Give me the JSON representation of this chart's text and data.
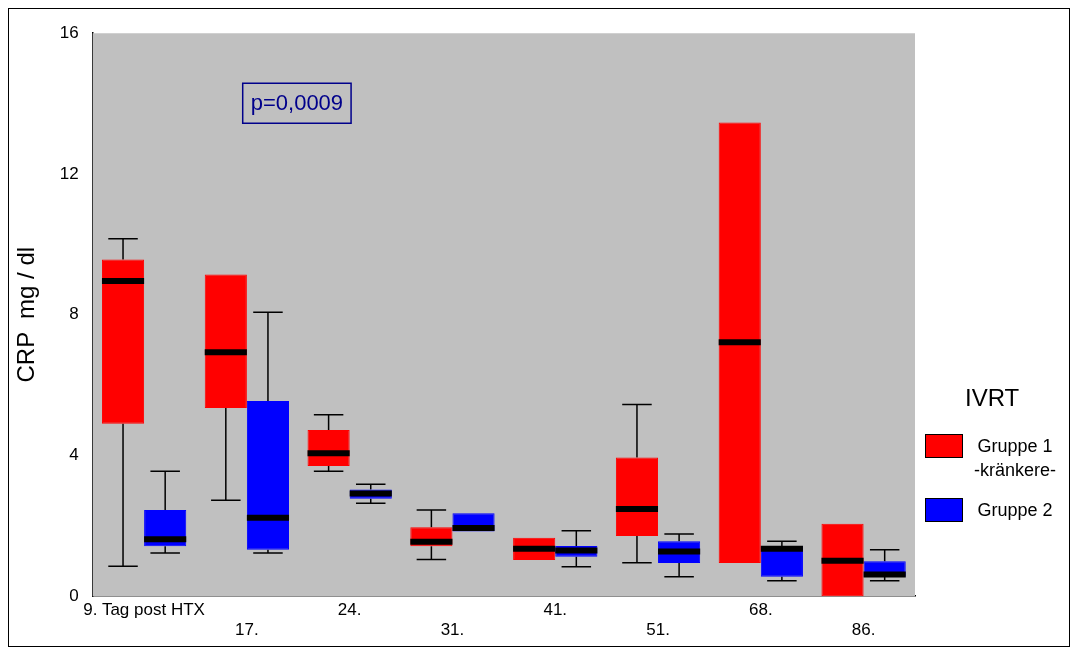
{
  "chart_data": {
    "type": "box",
    "ylabel": "CRP  mg / dl",
    "legend_title": "IVRT",
    "legend": "right",
    "grid": false,
    "categories": [
      "9. Tag post HTX",
      "17.",
      "24.",
      "31.",
      "41.",
      "51.",
      "68.",
      "86."
    ],
    "ylim": [
      0,
      16
    ],
    "yticks": [
      0,
      4,
      8,
      12,
      16
    ],
    "annotations": [
      "p=0,0009"
    ],
    "series": [
      {
        "name": "Gruppe 1 -kränkere-",
        "color": "#ff0000",
        "boxes": [
          {
            "low": 0.85,
            "q1": 4.9,
            "median": 8.96,
            "q3": 9.57,
            "high": 10.16
          },
          {
            "low": 2.73,
            "q1": 5.35,
            "median": 6.93,
            "q3": 9.14,
            "high": 9.14
          },
          {
            "low": 3.55,
            "q1": 3.7,
            "median": 4.06,
            "q3": 4.72,
            "high": 5.16
          },
          {
            "low": 1.04,
            "q1": 1.42,
            "median": 1.55,
            "q3": 1.96,
            "high": 2.45
          },
          {
            "low": 1.03,
            "q1": 1.03,
            "median": 1.35,
            "q3": 1.66,
            "high": 1.66
          },
          {
            "low": 0.95,
            "q1": 1.71,
            "median": 2.48,
            "q3": 3.94,
            "high": 5.45
          },
          {
            "low": 0.94,
            "q1": 0.94,
            "median": 7.22,
            "q3": 13.46,
            "high": 13.46
          },
          {
            "low": 0,
            "q1": 0,
            "median": 1.01,
            "q3": 2.06,
            "high": 2.06
          }
        ]
      },
      {
        "name": "Gruppe 2",
        "color": "#0000ff",
        "boxes": [
          {
            "low": 1.23,
            "q1": 1.42,
            "median": 1.62,
            "q3": 2.45,
            "high": 3.55
          },
          {
            "low": 1.23,
            "q1": 1.32,
            "median": 2.23,
            "q3": 5.55,
            "high": 8.07
          },
          {
            "low": 2.64,
            "q1": 2.77,
            "median": 2.92,
            "q3": 3.03,
            "high": 3.18
          },
          {
            "low": 1.84,
            "q1": 1.84,
            "median": 1.94,
            "q3": 2.36,
            "high": 2.36
          },
          {
            "low": 0.84,
            "q1": 1.12,
            "median": 1.3,
            "q3": 1.43,
            "high": 1.86
          },
          {
            "low": 0.55,
            "q1": 0.94,
            "median": 1.27,
            "q3": 1.56,
            "high": 1.77
          },
          {
            "low": 0.44,
            "q1": 0.55,
            "median": 1.35,
            "q3": 1.43,
            "high": 1.56
          },
          {
            "low": 0.44,
            "q1": 0.55,
            "median": 0.62,
            "q3": 0.99,
            "high": 1.32
          }
        ]
      }
    ]
  }
}
